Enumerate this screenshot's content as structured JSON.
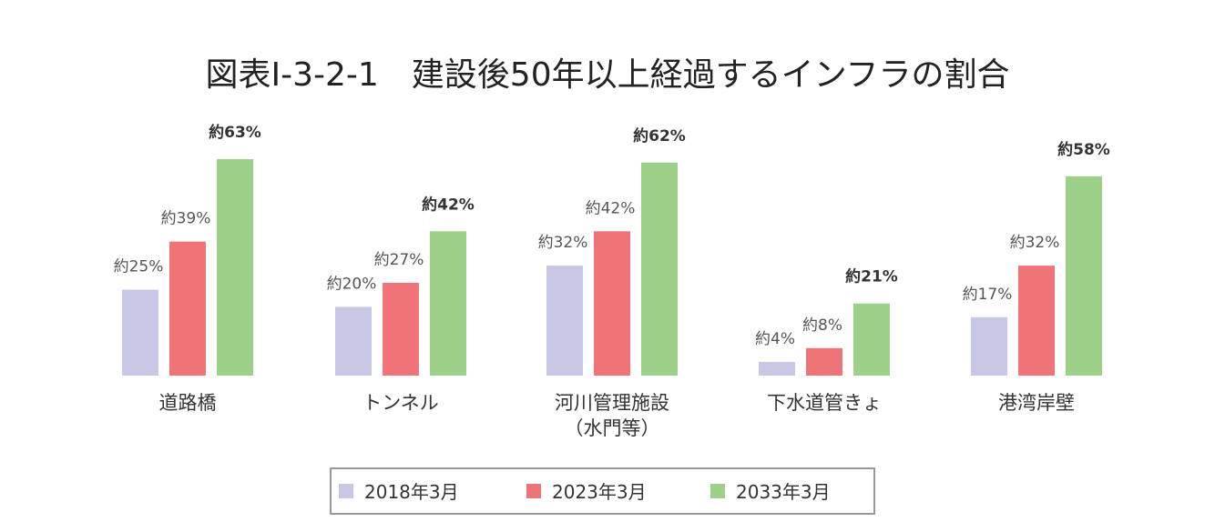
{
  "chart_data": {
    "type": "bar",
    "title": "図表I-3-2-1　建設後50年以上経過するインフラの割合",
    "categories": [
      "道路橋",
      "トンネル",
      "河川管理施設\n（水門等）",
      "下水道管きょ",
      "港湾岸壁"
    ],
    "series": [
      {
        "name": "2018年3月",
        "color": "#c8c8e6",
        "values": [
          25,
          20,
          32,
          4,
          17
        ],
        "labels": [
          "約25%",
          "約20%",
          "約32%",
          "約4%",
          "約17%"
        ]
      },
      {
        "name": "2023年3月",
        "color": "#ee7478",
        "values": [
          39,
          27,
          42,
          8,
          32
        ],
        "labels": [
          "約39%",
          "約27%",
          "約42%",
          "約8%",
          "約32%"
        ]
      },
      {
        "name": "2033年3月",
        "color": "#9dd088",
        "values": [
          63,
          42,
          62,
          21,
          58
        ],
        "labels": [
          "約63%",
          "約42%",
          "約62%",
          "約21%",
          "約58%"
        ]
      }
    ],
    "xlabel": "",
    "ylabel": "",
    "ylim": [
      0,
      63
    ],
    "grid": false,
    "legend": "bottom-center"
  }
}
